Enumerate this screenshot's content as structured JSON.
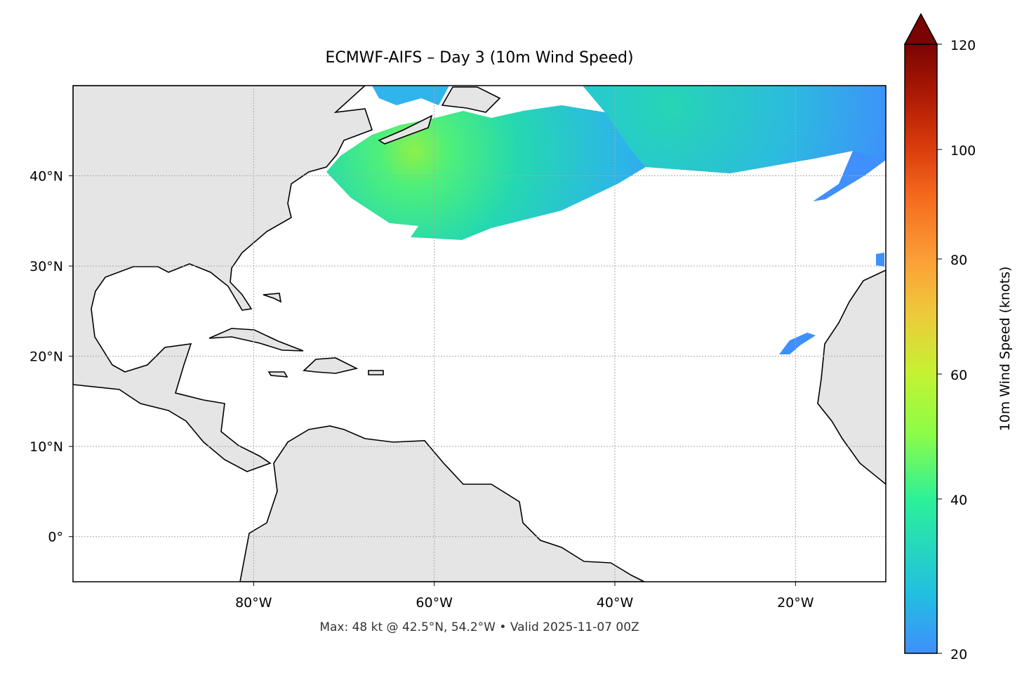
{
  "title": "ECMWF-AIFS – Day 3 (10m Wind Speed)",
  "footer": "Max: 48 kt @ 42.5°N, 54.2°W • Valid 2025-11-07 00Z",
  "map": {
    "extent": {
      "lon": [
        -100,
        -10
      ],
      "lat": [
        -5,
        50
      ]
    },
    "lon_ticks": [
      {
        "value": -80,
        "label": "80°W"
      },
      {
        "value": -60,
        "label": "60°W"
      },
      {
        "value": -40,
        "label": "40°W"
      },
      {
        "value": -20,
        "label": "20°W"
      }
    ],
    "lat_ticks": [
      {
        "value": 40,
        "label": "40°N"
      },
      {
        "value": 30,
        "label": "30°N"
      },
      {
        "value": 20,
        "label": "20°N"
      },
      {
        "value": 10,
        "label": "10°N"
      },
      {
        "value": 0,
        "label": "0°"
      }
    ],
    "gridlines": true,
    "land_color": "#e5e5e5",
    "max_wind": {
      "value_kt": 48,
      "lat": 42.5,
      "lon": -54.2
    }
  },
  "colorbar": {
    "label": "10m Wind Speed (knots)",
    "ticks": [
      "20",
      "40",
      "60",
      "80",
      "100",
      "120"
    ],
    "range": [
      20,
      120
    ],
    "extend": "max",
    "colormap": "turbo"
  }
}
